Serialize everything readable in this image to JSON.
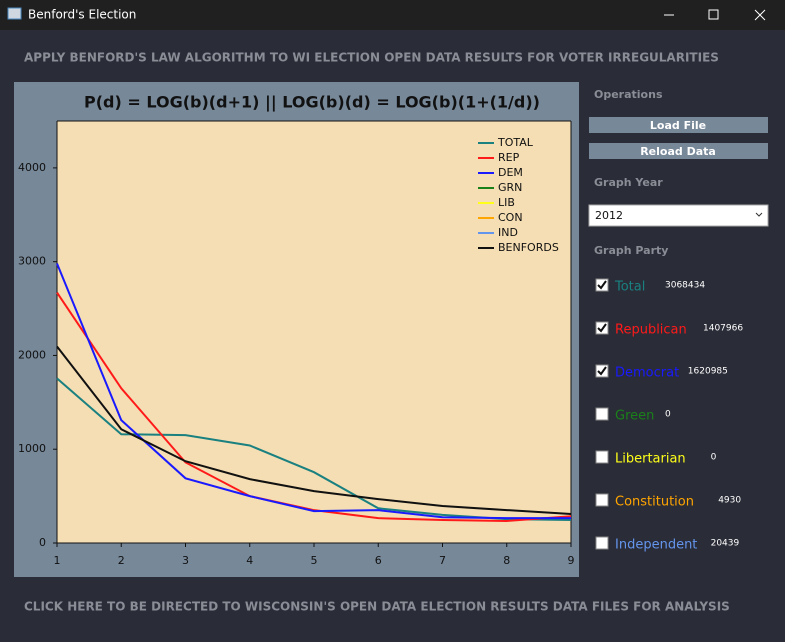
{
  "window": {
    "title": "Benford's Election"
  },
  "header": "APPLY BENFORD'S LAW ALGORITHM TO WI ELECTION OPEN DATA RESULTS FOR VOTER IRREGULARITIES",
  "chart_data": {
    "type": "line",
    "title": "P(d) = LOG(b)(d+1) || LOG(b)(d) = LOG(b)(1+(1/d))",
    "x": [
      1,
      2,
      3,
      4,
      5,
      6,
      7,
      8,
      9
    ],
    "xlim": [
      1,
      9
    ],
    "xticks": [
      1,
      2,
      3,
      4,
      5,
      6,
      7,
      8,
      9
    ],
    "ylim": [
      0,
      4500
    ],
    "yticks": [
      0,
      1000,
      2000,
      3000,
      4000
    ],
    "legend": "upper right",
    "series": [
      {
        "name": "TOTAL",
        "color": "#1a8080",
        "values": [
          1755,
          1160,
          1150,
          1040,
          755,
          370,
          300,
          255,
          245
        ]
      },
      {
        "name": "REP",
        "color": "#ff1a1a",
        "values": [
          2670,
          1650,
          860,
          500,
          350,
          265,
          245,
          235,
          285
        ]
      },
      {
        "name": "DEM",
        "color": "#1a1aff",
        "values": [
          2980,
          1310,
          690,
          500,
          340,
          350,
          275,
          265,
          265
        ]
      },
      {
        "name": "GRN",
        "color": "#1a801a",
        "values": [
          null,
          null,
          null,
          null,
          null,
          null,
          null,
          null,
          null
        ]
      },
      {
        "name": "LIB",
        "color": "#ffff1a",
        "values": [
          null,
          null,
          null,
          null,
          null,
          null,
          null,
          null,
          null
        ]
      },
      {
        "name": "CON",
        "color": "#ffa500",
        "values": [
          null,
          null,
          null,
          null,
          null,
          null,
          null,
          null,
          null
        ]
      },
      {
        "name": "IND",
        "color": "#6495ed",
        "values": [
          null,
          null,
          null,
          null,
          null,
          null,
          null,
          null,
          null
        ]
      },
      {
        "name": "BENFORDS",
        "color": "#111111",
        "values": [
          2095,
          1213,
          872,
          681,
          553,
          468,
          394,
          351,
          309
        ]
      }
    ]
  },
  "panel": {
    "operations_label": "Operations",
    "buttons": [
      "Load File",
      "Reload Data"
    ],
    "graph_year_label": "Graph Year",
    "year": "2012",
    "graph_party_label": "Graph Party",
    "parties": [
      {
        "name": "Total",
        "count": "3068434",
        "checked": true,
        "color": "#1a8080"
      },
      {
        "name": "Republican",
        "count": "1407966",
        "checked": true,
        "color": "#ff1a1a"
      },
      {
        "name": "Democrat",
        "count": "1620985",
        "checked": true,
        "color": "#1a1aff"
      },
      {
        "name": "Green",
        "count": "0",
        "checked": false,
        "color": "#1a801a"
      },
      {
        "name": "Libertarian",
        "count": "0",
        "checked": false,
        "color": "#ffff1a"
      },
      {
        "name": "Constitution",
        "count": "4930",
        "checked": false,
        "color": "#ffa500"
      },
      {
        "name": "Independent",
        "count": "20439",
        "checked": false,
        "color": "#6495ed"
      }
    ]
  },
  "footer": "CLICK HERE TO BE DIRECTED TO WISCONSIN'S OPEN DATA ELECTION RESULTS DATA FILES FOR ANALYSIS"
}
